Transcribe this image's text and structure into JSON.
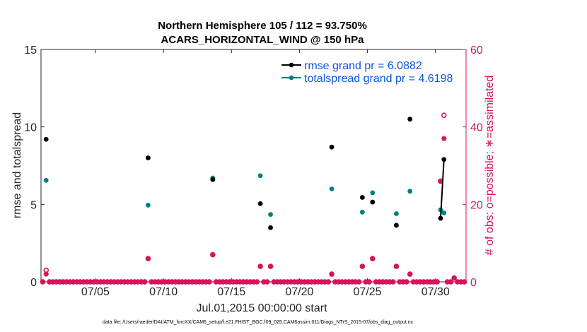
{
  "chart_data": {
    "type": "scatter",
    "title_line1": "Northern Hemisphere 105 / 112 = 93.750%",
    "title_line2": "ACARS_HORIZONTAL_WIND @ 150 hPa",
    "xlabel": "Jul.01,2015 00:00:00 start",
    "ylabel": "rmse and totalspread",
    "ylabel_right": "# of obs: o=possible; ∗=assimilated",
    "x_range_days": [
      0.0,
      31.25
    ],
    "ylim": [
      0,
      15
    ],
    "ylim_right": [
      0,
      60
    ],
    "yticks": [
      "0",
      "5",
      "10",
      "15"
    ],
    "yticks_right": [
      "0",
      "20",
      "40",
      "60"
    ],
    "x_tick_days": [
      4,
      9,
      14,
      19,
      24,
      29
    ],
    "x_tick_labels": [
      "07/05",
      "07/10",
      "07/15",
      "07/20",
      "07/25",
      "07/30"
    ],
    "legend": {
      "position": "top-right",
      "rmse_label": "rmse grand pr = 6.0882",
      "spread_label": "totalspread grand pr = 4.6198"
    },
    "colors": {
      "rmse": "#000000",
      "spread": "#008080",
      "obs": "#d6155a",
      "legend_text": "#0a55e0"
    },
    "rmse": [
      {
        "x": 0.375,
        "y": 9.2
      },
      {
        "x": 7.875,
        "y": 8.0
      },
      {
        "x": 12.625,
        "y": 6.6
      },
      {
        "x": 16.125,
        "y": 5.05
      },
      {
        "x": 16.875,
        "y": 3.5
      },
      {
        "x": 21.375,
        "y": 8.7
      },
      {
        "x": 23.625,
        "y": 5.45
      },
      {
        "x": 24.375,
        "y": 5.15
      },
      {
        "x": 26.125,
        "y": 3.65
      },
      {
        "x": 27.125,
        "y": 10.5
      },
      {
        "x": 29.375,
        "y": 4.1
      },
      {
        "x": 29.625,
        "y": 7.9
      }
    ],
    "rmse_connected": [
      {
        "x": 29.375,
        "y": 4.1
      },
      {
        "x": 29.625,
        "y": 7.9
      }
    ],
    "totalspread": [
      {
        "x": 0.375,
        "y": 6.55
      },
      {
        "x": 7.875,
        "y": 4.95
      },
      {
        "x": 12.625,
        "y": 6.7
      },
      {
        "x": 16.125,
        "y": 6.85
      },
      {
        "x": 16.875,
        "y": 4.35
      },
      {
        "x": 21.375,
        "y": 6.0
      },
      {
        "x": 23.625,
        "y": 4.5
      },
      {
        "x": 24.375,
        "y": 5.75
      },
      {
        "x": 26.125,
        "y": 4.4
      },
      {
        "x": 27.125,
        "y": 5.85
      },
      {
        "x": 29.375,
        "y": 4.65
      },
      {
        "x": 29.625,
        "y": 4.45
      }
    ],
    "obs_nonzero": [
      {
        "x": 0.375,
        "possible": 3,
        "assimilated": 2
      },
      {
        "x": 7.875,
        "possible": 6,
        "assimilated": 6
      },
      {
        "x": 12.625,
        "possible": 7,
        "assimilated": 7
      },
      {
        "x": 16.125,
        "possible": 4,
        "assimilated": 4
      },
      {
        "x": 16.875,
        "possible": 4,
        "assimilated": 4
      },
      {
        "x": 21.375,
        "possible": 2,
        "assimilated": 2
      },
      {
        "x": 23.625,
        "possible": 4,
        "assimilated": 4
      },
      {
        "x": 24.375,
        "possible": 6,
        "assimilated": 6
      },
      {
        "x": 26.125,
        "possible": 4,
        "assimilated": 4
      },
      {
        "x": 27.125,
        "possible": 2,
        "assimilated": 2
      },
      {
        "x": 29.375,
        "possible": 26,
        "assimilated": 26
      },
      {
        "x": 29.625,
        "possible": 43,
        "assimilated": 37
      },
      {
        "x": 30.375,
        "possible": 1,
        "assimilated": 1
      }
    ],
    "obs_step_days": 0.25,
    "obs_zero_value": 0
  },
  "footer": "data file: /Users/raeder/DAI/ATM_forcXX/CAM6_setup/f.e21.FHIST_BGC.f09_025.CAM6assim.011/Diags_NTrS_2015-07/obs_diag_output.nc"
}
